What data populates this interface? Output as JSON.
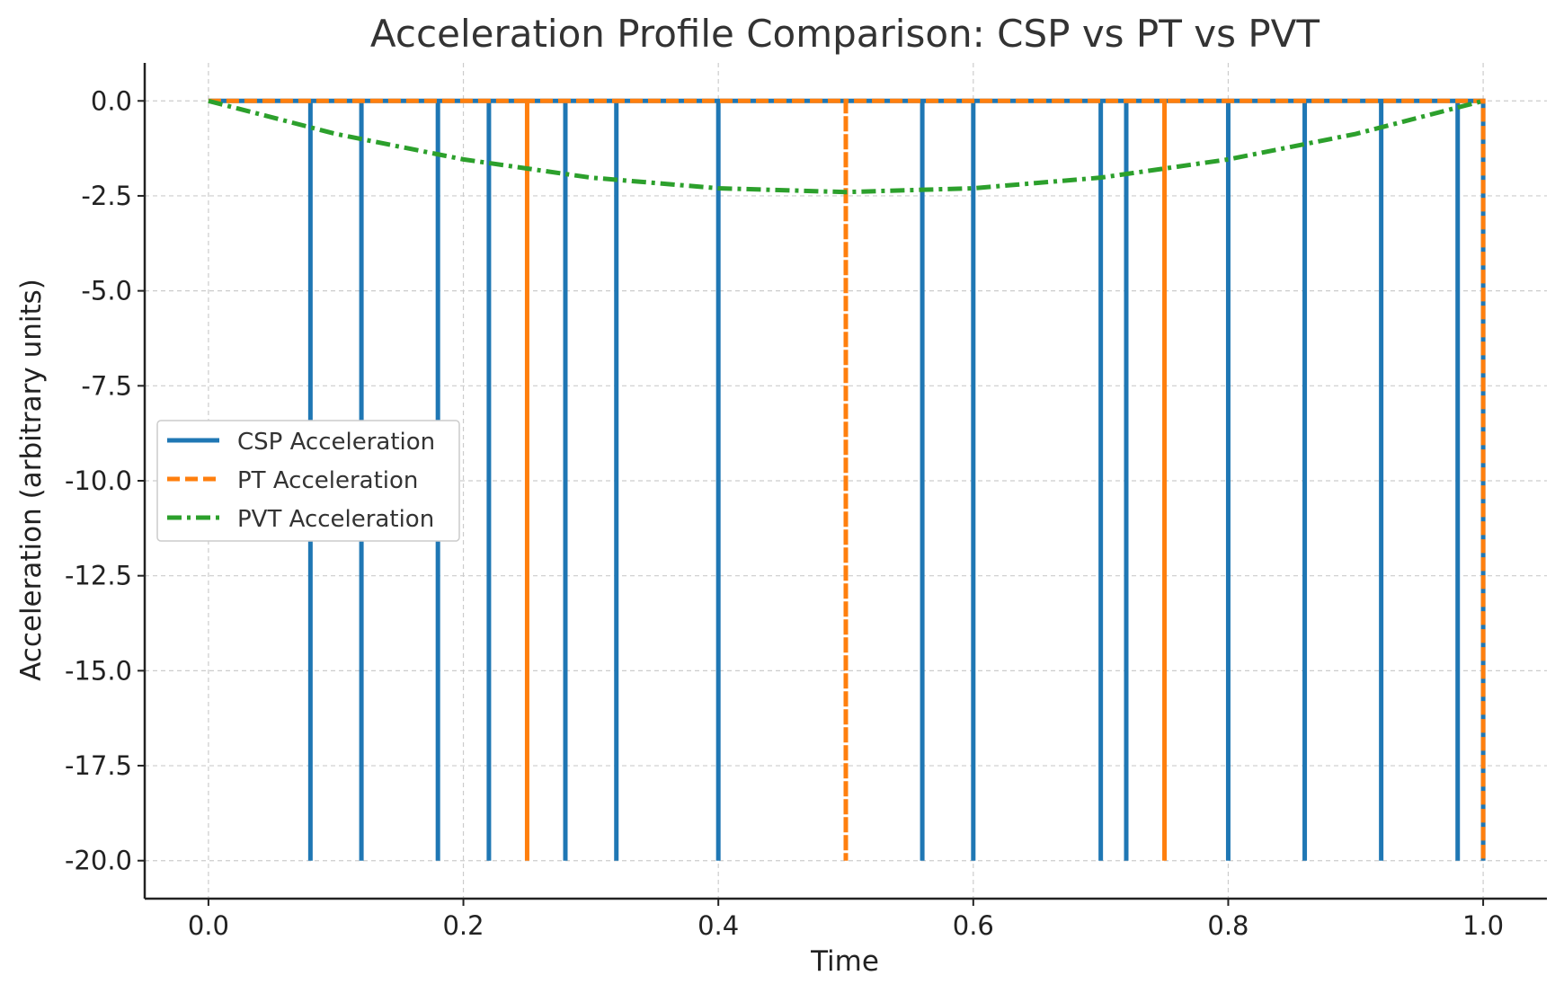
{
  "chart_data": {
    "type": "line",
    "title": "Acceleration Profile Comparison: CSP vs PT vs PVT",
    "xlabel": "Time",
    "ylabel": "Acceleration (arbitrary units)",
    "xlim": [
      -0.05,
      1.05
    ],
    "ylim": [
      -21.0,
      1.0
    ],
    "x_ticks": [
      0.0,
      0.2,
      0.4,
      0.6,
      0.8,
      1.0
    ],
    "x_tick_labels": [
      "0.0",
      "0.2",
      "0.4",
      "0.6",
      "0.8",
      "1.0"
    ],
    "y_ticks": [
      0.0,
      -2.5,
      -5.0,
      -7.5,
      -10.0,
      -12.5,
      -15.0,
      -17.5,
      -20.0
    ],
    "y_tick_labels": [
      "0.0",
      "-2.5",
      "-5.0",
      "-7.5",
      "-10.0",
      "-12.5",
      "-15.0",
      "-17.5",
      "-20.0"
    ],
    "grid": true,
    "legend_position": "center-left",
    "series": [
      {
        "name": "CSP Acceleration",
        "color": "#1f77b4",
        "style": "solid",
        "kind": "spikes",
        "baseline": 0.0,
        "spike_value": -20.0,
        "spike_x": [
          0.08,
          0.12,
          0.18,
          0.22,
          0.28,
          0.32,
          0.4,
          0.56,
          0.6,
          0.7,
          0.72,
          0.8,
          0.86,
          0.92,
          0.98,
          1.0
        ]
      },
      {
        "name": "PT Acceleration",
        "color": "#ff7f0e",
        "style": "dashed",
        "kind": "spikes",
        "baseline": 0.0,
        "spike_value": -20.0,
        "spike_x": [
          0.25,
          0.5,
          0.75,
          1.0
        ]
      },
      {
        "name": "PVT Acceleration",
        "color": "#2ca02c",
        "style": "dashdot",
        "kind": "curve",
        "x": [
          0.0,
          0.1,
          0.2,
          0.3,
          0.4,
          0.5,
          0.6,
          0.7,
          0.8,
          0.9,
          1.0
        ],
        "y": [
          0.0,
          -0.87,
          -1.54,
          -2.02,
          -2.3,
          -2.4,
          -2.3,
          -2.02,
          -1.54,
          -0.87,
          0.0
        ]
      }
    ]
  }
}
